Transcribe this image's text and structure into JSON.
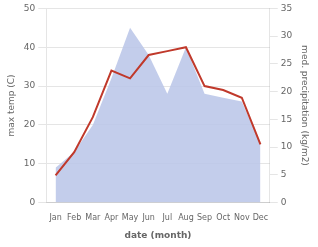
{
  "chart_data": {
    "type": "line",
    "xlabel": "date (month)",
    "ylabel": "max temp (C)",
    "y2label": "med. precipitation (kg/m2)",
    "categories": [
      "Jan",
      "Feb",
      "Mar",
      "Apr",
      "May",
      "Jun",
      "Jul",
      "Aug",
      "Sep",
      "Oct",
      "Nov",
      "Dec"
    ],
    "series": [
      {
        "type": "area",
        "color": "#b8c4e8",
        "values": [
          9,
          13,
          20,
          32,
          45,
          38,
          28,
          40,
          28,
          27,
          26,
          15
        ]
      },
      {
        "type": "line",
        "color": "#c0392b",
        "values": [
          7,
          13,
          22,
          34,
          32,
          38,
          39,
          40,
          30,
          29,
          27,
          15
        ]
      }
    ],
    "ylim": [
      0,
      50
    ],
    "yticks": [
      0,
      10,
      20,
      30,
      40,
      50
    ],
    "y2lim": [
      0,
      35
    ],
    "y2ticks": [
      0,
      5,
      10,
      15,
      20,
      25,
      30,
      35
    ],
    "grid": true
  }
}
